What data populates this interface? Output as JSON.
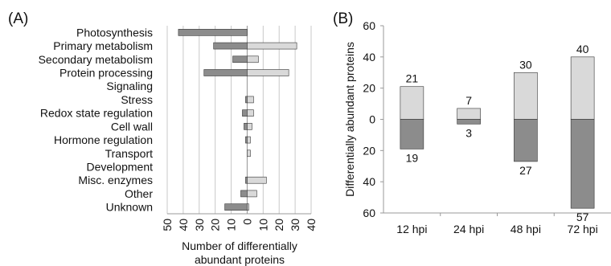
{
  "colors": {
    "increase": "#d9d9d9",
    "decrease": "#8c8c8c",
    "grid": "#c8c8c8",
    "stroke": "#333333"
  },
  "chart_data": [
    {
      "panel": "(A)",
      "type": "bar",
      "orientation": "horizontal",
      "categories": [
        "Photosynthesis",
        "Primary metabolism",
        "Secondary metabolism",
        "Protein processing",
        "Signaling",
        "Stress",
        "Redox state regulation",
        "Cell wall",
        "Hormone regulation",
        "Transport",
        "Development",
        "Misc. enzymes",
        "Other",
        "Unknown"
      ],
      "series": [
        {
          "values": [
            -43,
            -21,
            -9,
            -27,
            0,
            -1,
            -3,
            -2,
            -1,
            0,
            0,
            -1,
            -4,
            -14
          ]
        },
        {
          "values": [
            0,
            31,
            7,
            26,
            0,
            4,
            4,
            3,
            2,
            2,
            0,
            12,
            6,
            1
          ]
        }
      ],
      "xlabel": "Number of differentially abundant proteins",
      "xticks": [
        "50",
        "40",
        "30",
        "20",
        "10",
        "0",
        "10",
        "20",
        "30",
        "40"
      ],
      "xlim": [
        -50,
        40
      ],
      "grid": true
    },
    {
      "panel": "(B)",
      "type": "bar",
      "stacked": true,
      "categories": [
        "12 hpi",
        "24 hpi",
        "48 hpi",
        "72 hpi"
      ],
      "series": [
        {
          "values": [
            21,
            7,
            30,
            40
          ]
        },
        {
          "values": [
            -19,
            -3,
            -27,
            -57
          ]
        }
      ],
      "ylabel": "Differentially abundant proteins",
      "yticks": [
        "60",
        "40",
        "20",
        "0",
        "20",
        "40",
        "60"
      ],
      "ylim": [
        -60,
        60
      ],
      "grid": false
    }
  ]
}
